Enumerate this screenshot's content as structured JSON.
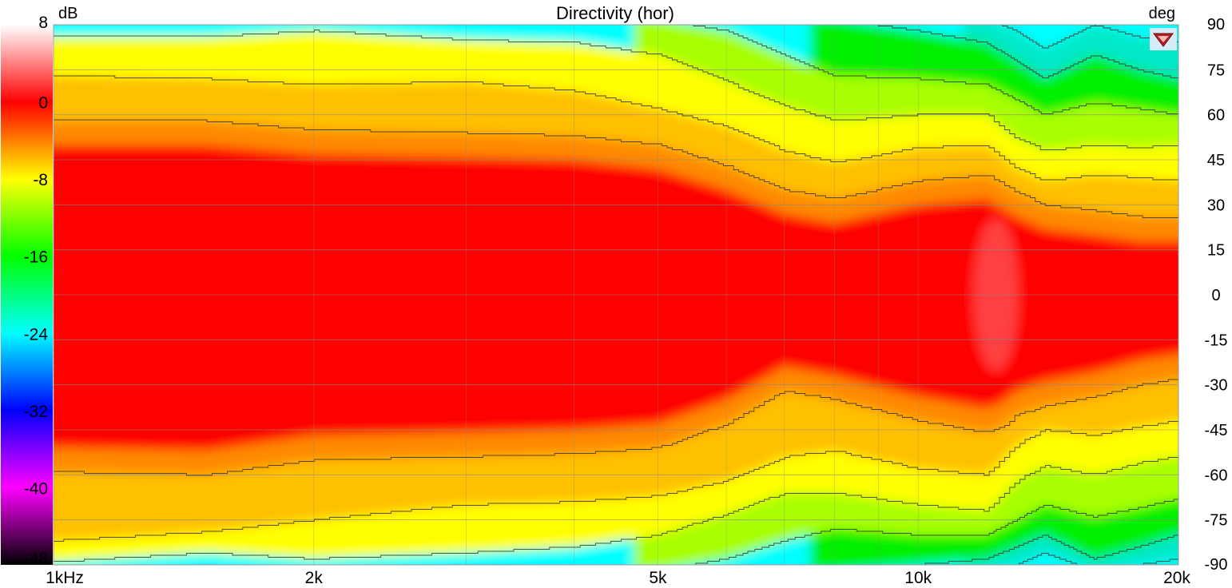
{
  "chart_data": {
    "type": "heatmap",
    "title": "Directivity (hor)",
    "colorbar_unit": "dB",
    "y_unit": "deg",
    "colorbar_ticks": [
      8,
      0,
      -8,
      -16,
      -24,
      -32,
      -40,
      -48
    ],
    "colorbar_range": [
      -48,
      8
    ],
    "y_ticks": [
      90,
      75,
      60,
      45,
      30,
      15,
      0,
      -15,
      -30,
      -45,
      -60,
      -75,
      -90
    ],
    "y_range": [
      -90,
      90
    ],
    "x_scale": "log",
    "x_range_hz": [
      1000,
      20000
    ],
    "x_ticks": [
      {
        "value": 1000,
        "label": "1kHz"
      },
      {
        "value": 2000,
        "label": "2k"
      },
      {
        "value": 5000,
        "label": "5k"
      },
      {
        "value": 10000,
        "label": "10k"
      },
      {
        "value": 20000,
        "label": "20k"
      }
    ],
    "grid": true,
    "contour_step_db": 3,
    "contours": [
      {
        "level_db": -3,
        "freq_hz": [
          1000,
          1500,
          2000,
          3000,
          4000,
          5000,
          6000,
          7000,
          8000,
          10000,
          12000,
          12500,
          13000,
          14000,
          16000,
          18000,
          20000
        ],
        "upper_deg": [
          58,
          58,
          55,
          54,
          53,
          50,
          43,
          35,
          32,
          38,
          40,
          37,
          34,
          30,
          28,
          26,
          26
        ],
        "lower_deg": [
          -59,
          -60,
          -55,
          -54,
          -53,
          -51,
          -43,
          -32,
          -35,
          -42,
          -46,
          -44,
          -40,
          -37,
          -34,
          -30,
          -28
        ]
      },
      {
        "level_db": -6,
        "freq_hz": [
          1000,
          1500,
          2000,
          3000,
          4000,
          5000,
          6000,
          7000,
          8000,
          10000,
          12000,
          12500,
          13000,
          14000,
          16000,
          18000,
          20000
        ],
        "upper_deg": [
          73,
          72,
          70,
          71,
          68,
          62,
          56,
          48,
          44,
          49,
          50,
          46,
          42,
          38,
          40,
          39,
          38
        ],
        "lower_deg": [
          -82,
          -79,
          -75,
          -70,
          -69,
          -67,
          -62,
          -54,
          -52,
          -58,
          -60,
          -55,
          -50,
          -45,
          -47,
          -44,
          -42
        ]
      },
      {
        "level_db": -9,
        "freq_hz": [
          1000,
          1500,
          2000,
          3000,
          4000,
          5000,
          6000,
          7000,
          8000,
          10000,
          12000,
          12500,
          13000,
          14000,
          16000,
          18000,
          20000
        ],
        "upper_deg": [
          86,
          86,
          88,
          85,
          84,
          80,
          71,
          63,
          58,
          60,
          60,
          56,
          52,
          48,
          50,
          49,
          50
        ],
        "lower_deg": [
          -89,
          -86,
          -88,
          -86,
          -84,
          -80,
          -73,
          -66,
          -66,
          -70,
          -72,
          -67,
          -62,
          -57,
          -60,
          -56,
          -54
        ]
      },
      {
        "level_db": -12,
        "freq_hz": [
          5000,
          6000,
          7000,
          8000,
          10000,
          12000,
          13000,
          14000,
          16000,
          18000,
          20000
        ],
        "upper_deg": [
          92,
          88,
          80,
          73,
          72,
          70,
          65,
          60,
          64,
          62,
          60
        ],
        "lower_deg": [
          -92,
          -88,
          -82,
          -78,
          -80,
          -80,
          -75,
          -70,
          -74,
          -71,
          -68
        ]
      },
      {
        "level_db": -15,
        "freq_hz": [
          8000,
          10000,
          12000,
          13000,
          14000,
          16000,
          18000,
          20000
        ],
        "upper_deg": [
          92,
          88,
          84,
          78,
          72,
          80,
          75,
          72
        ],
        "lower_deg": [
          -92,
          -90,
          -88,
          -84,
          -80,
          -88,
          -84,
          -80
        ]
      },
      {
        "level_db": -18,
        "freq_hz": [
          12000,
          13000,
          14000,
          16000,
          18000,
          20000
        ],
        "upper_deg": [
          92,
          88,
          82,
          90,
          86,
          84
        ],
        "lower_deg": [
          -92,
          -90,
          -86,
          -92,
          -90,
          -88
        ]
      }
    ]
  },
  "logo": {
    "name": "vituixcad-logo"
  }
}
